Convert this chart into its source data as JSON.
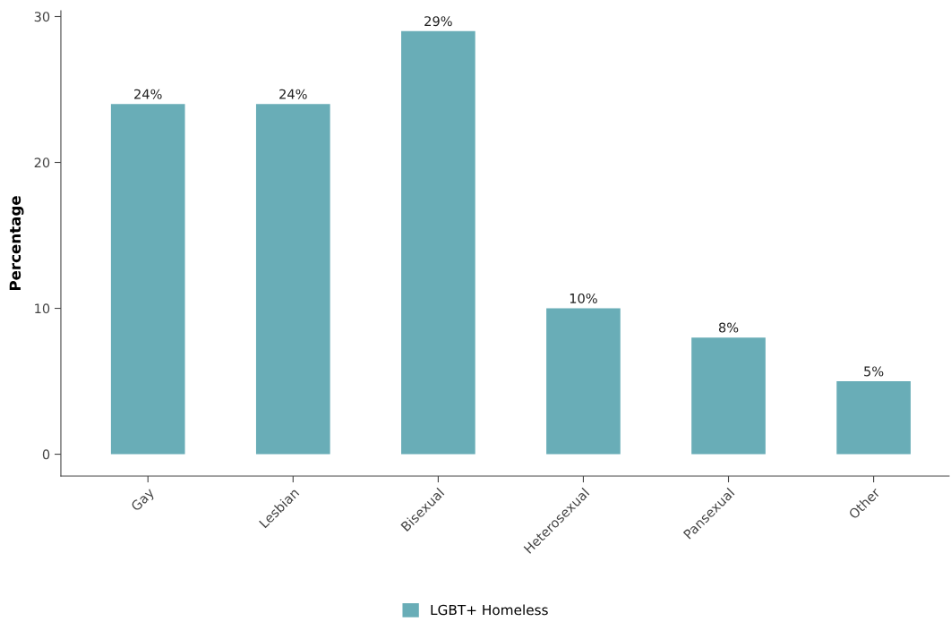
{
  "chart_data": {
    "type": "bar",
    "ylabel": "Percentage",
    "categories": [
      "Gay",
      "Lesbian",
      "Bisexual",
      "Heterosexual",
      "Pansexual",
      "Other"
    ],
    "series": [
      {
        "name": "LGBT+ Homeless",
        "color": "#69adb7",
        "values": [
          24,
          24,
          29,
          10,
          8,
          5
        ],
        "value_labels": [
          "24%",
          "24%",
          "29%",
          "10%",
          "8%",
          "5%"
        ]
      }
    ],
    "ylim": [
      -1.5,
      30.4
    ],
    "yticks": [
      0,
      10,
      20,
      30
    ],
    "grid": false,
    "legend": "bottom"
  }
}
